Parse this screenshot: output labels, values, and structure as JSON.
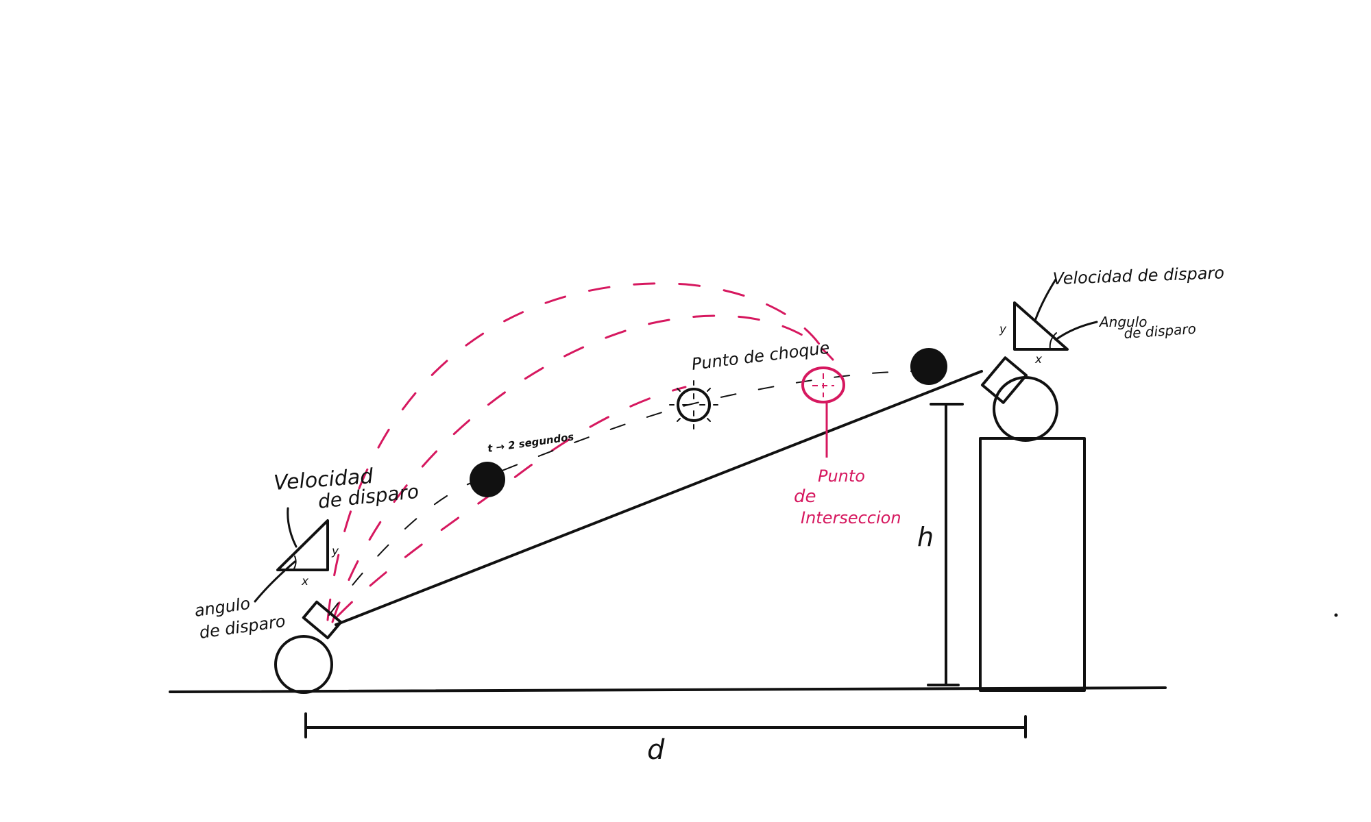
{
  "colors": {
    "ink": "#111111",
    "accent": "#d6185f"
  },
  "left_cannon": {
    "velocity_label_line1": "Velocidad",
    "velocity_label_line2": "de disparo",
    "angle_label_line1": "angulo",
    "angle_label_line2": "de disparo",
    "triangle_x": "x",
    "triangle_y": "y"
  },
  "right_cannon": {
    "velocity_label": "Velocidad de disparo",
    "angle_label_line1": "Angulo",
    "angle_label_line2": "de disparo",
    "triangle_x": "x",
    "triangle_y": "y"
  },
  "time_label": "t → 2 segundos",
  "impact_label": "Punto de choque",
  "intersection_label_line1": "Punto",
  "intersection_label_line2": "de",
  "intersection_label_line3": "Interseccion",
  "height_label": "h",
  "distance_label": "d"
}
